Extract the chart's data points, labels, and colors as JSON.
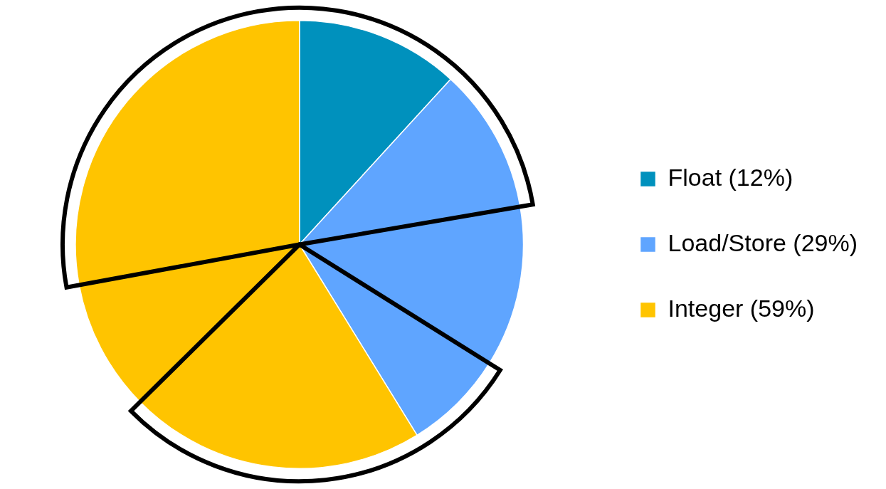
{
  "chart_data": {
    "type": "pie",
    "categories": [
      "Float (12%)",
      "Load/Store (29%)",
      null,
      null,
      "Integer (59%)",
      null,
      null
    ],
    "values": [
      11.8,
      10.5,
      11.6,
      7.3,
      21.4,
      9.5,
      27.9
    ],
    "colors": [
      "#0091bd",
      "#5fa5ff",
      "#5fa5ff",
      "#5fa5ff",
      "#ffc400",
      "#ffc400",
      "#ffc400"
    ],
    "legend": "right"
  }
}
